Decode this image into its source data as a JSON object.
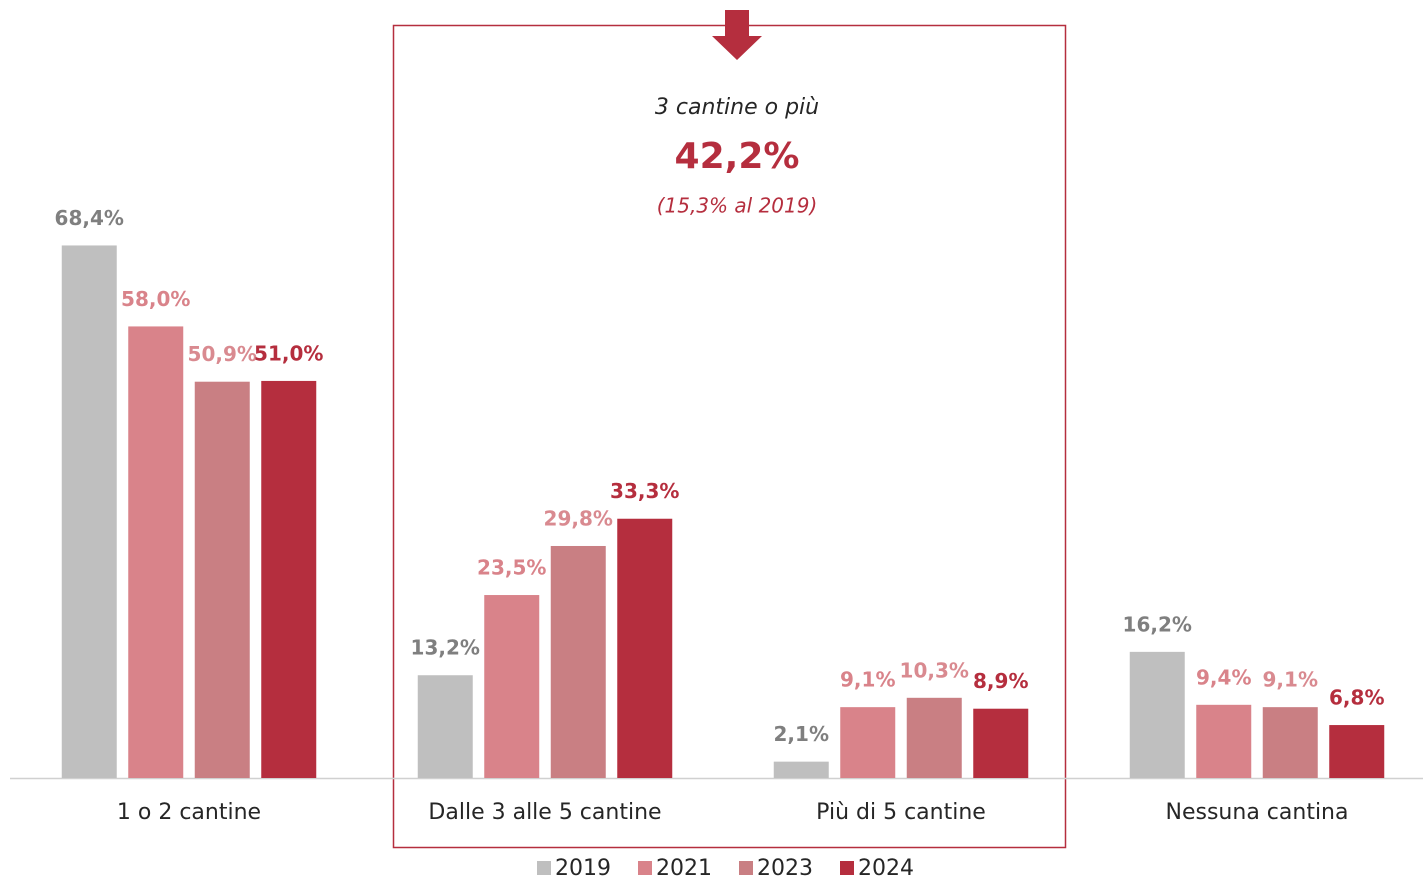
{
  "chart_data": {
    "type": "bar",
    "categories": [
      "1 o 2 cantine",
      "Dalle 3 alle 5 cantine",
      "Più di 5 cantine",
      "Nessuna cantina"
    ],
    "series": [
      {
        "name": "2019",
        "color": "#bfbfbf",
        "label_color": "#7f7f7f",
        "values": [
          68.4,
          13.2,
          2.1,
          16.2
        ],
        "value_labels": [
          "68,4%",
          "13,2%",
          "2,1%",
          "16,2%"
        ]
      },
      {
        "name": "2021",
        "color": "#d9838a",
        "label_color": "#d9838a",
        "values": [
          58.0,
          23.5,
          9.1,
          9.4
        ],
        "value_labels": [
          "58,0%",
          "23,5%",
          "9,1%",
          "9,4%"
        ]
      },
      {
        "name": "2023",
        "color": "#c97f83",
        "label_color": "#d98a90",
        "values": [
          50.9,
          29.8,
          10.3,
          9.1
        ],
        "value_labels": [
          "50,9%",
          "29,8%",
          "10,3%",
          "9,1%"
        ]
      },
      {
        "name": "2024",
        "color": "#b52e3e",
        "label_color": "#b52e3e",
        "values": [
          51.0,
          33.3,
          8.9,
          6.8
        ],
        "value_labels": [
          "51,0%",
          "33,3%",
          "8,9%",
          "6,8%"
        ]
      }
    ],
    "annotations": [
      "3 cantine o più",
      "42,2%",
      "(15,3% al 2019)"
    ],
    "ylim": [
      0,
      70
    ],
    "legend": "bottom"
  }
}
